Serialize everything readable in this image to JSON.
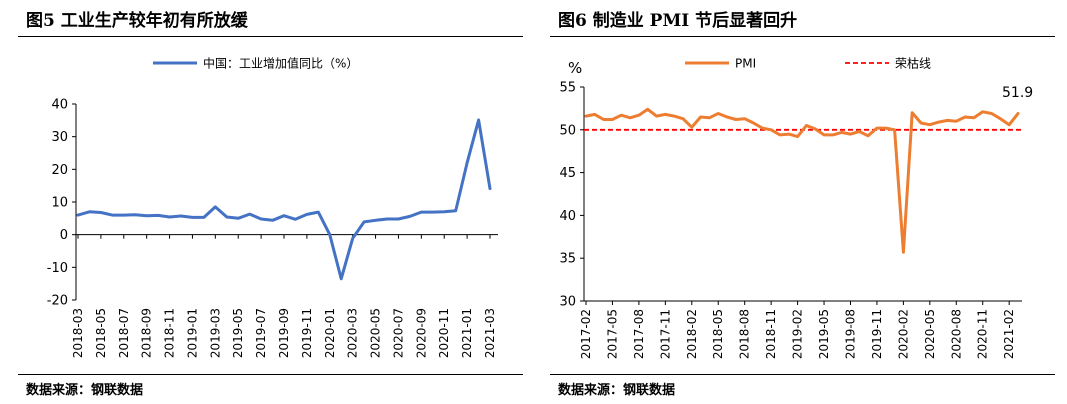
{
  "panels": [
    {
      "title": "图5  工业生产较年初有所放缓",
      "source": "数据来源：钢联数据"
    },
    {
      "title": "图6  制造业 PMI 节后显著回升",
      "source": "数据来源：钢联数据"
    }
  ],
  "chart_data": [
    {
      "type": "line",
      "title": "图5  工业生产较年初有所放缓",
      "ylabel": "",
      "xlabel": "",
      "ylim": [
        -20,
        40
      ],
      "yticks": [
        -20,
        -10,
        0,
        10,
        20,
        30,
        40
      ],
      "x_tick_labels": [
        "2018-03",
        "2018-05",
        "2018-07",
        "2018-09",
        "2018-11",
        "2019-01",
        "2019-03",
        "2019-05",
        "2019-07",
        "2019-09",
        "2019-11",
        "2020-01",
        "2020-03",
        "2020-05",
        "2020-07",
        "2020-09",
        "2020-11",
        "2021-01",
        "2021-03"
      ],
      "legend": {
        "placement": "top-center",
        "entries": [
          "中国：工业增加值同比（%）"
        ]
      },
      "series": [
        {
          "name": "中国：工业增加值同比（%）",
          "color": "#4472C4",
          "x": [
            "2018-03",
            "2018-04",
            "2018-05",
            "2018-06",
            "2018-07",
            "2018-08",
            "2018-09",
            "2018-10",
            "2018-11",
            "2018-12",
            "2019-01",
            "2019-02",
            "2019-03",
            "2019-04",
            "2019-05",
            "2019-06",
            "2019-07",
            "2019-08",
            "2019-09",
            "2019-10",
            "2019-11",
            "2019-12",
            "2020-01",
            "2020-02",
            "2020-03",
            "2020-04",
            "2020-05",
            "2020-06",
            "2020-07",
            "2020-08",
            "2020-09",
            "2020-10",
            "2020-11",
            "2020-12",
            "2021-01",
            "2021-02",
            "2021-03"
          ],
          "values": [
            6.0,
            7.0,
            6.8,
            6.0,
            6.0,
            6.1,
            5.8,
            5.9,
            5.4,
            5.7,
            5.3,
            5.3,
            8.5,
            5.4,
            5.0,
            6.3,
            4.8,
            4.4,
            5.8,
            4.7,
            6.2,
            6.9,
            0,
            -13.5,
            -1.1,
            3.9,
            4.4,
            4.8,
            4.8,
            5.6,
            6.9,
            6.9,
            7.0,
            7.3,
            22,
            35.1,
            14.1
          ]
        }
      ]
    },
    {
      "type": "line",
      "title": "图6  制造业 PMI 节后显著回升",
      "ylabel": "%",
      "xlabel": "",
      "ylim": [
        30,
        55
      ],
      "yticks": [
        30,
        35,
        40,
        45,
        50,
        55
      ],
      "x_tick_labels": [
        "2017-02",
        "2017-05",
        "2017-08",
        "2017-11",
        "2018-02",
        "2018-05",
        "2018-08",
        "2018-11",
        "2019-02",
        "2019-05",
        "2019-08",
        "2019-11",
        "2020-02",
        "2020-05",
        "2020-08",
        "2020-11",
        "2021-02"
      ],
      "legend": {
        "placement": "top-center",
        "entries": [
          "PMI",
          "荣枯线"
        ]
      },
      "annotations": [
        {
          "text": "51.9"
        }
      ],
      "series": [
        {
          "name": "PMI",
          "color": "#ED7D31",
          "x": [
            "2017-02",
            "2017-03",
            "2017-04",
            "2017-05",
            "2017-06",
            "2017-07",
            "2017-08",
            "2017-09",
            "2017-10",
            "2017-11",
            "2017-12",
            "2018-01",
            "2018-02",
            "2018-03",
            "2018-04",
            "2018-05",
            "2018-06",
            "2018-07",
            "2018-08",
            "2018-09",
            "2018-10",
            "2018-11",
            "2018-12",
            "2019-01",
            "2019-02",
            "2019-03",
            "2019-04",
            "2019-05",
            "2019-06",
            "2019-07",
            "2019-08",
            "2019-09",
            "2019-10",
            "2019-11",
            "2019-12",
            "2020-01",
            "2020-02",
            "2020-03",
            "2020-04",
            "2020-05",
            "2020-06",
            "2020-07",
            "2020-08",
            "2020-09",
            "2020-10",
            "2020-11",
            "2020-12",
            "2021-01",
            "2021-02",
            "2021-03"
          ],
          "values": [
            51.6,
            51.8,
            51.2,
            51.2,
            51.7,
            51.4,
            51.7,
            52.4,
            51.6,
            51.8,
            51.6,
            51.3,
            50.3,
            51.5,
            51.4,
            51.9,
            51.5,
            51.2,
            51.3,
            50.8,
            50.2,
            50.0,
            49.4,
            49.5,
            49.2,
            50.5,
            50.1,
            49.4,
            49.4,
            49.7,
            49.5,
            49.8,
            49.3,
            50.2,
            50.2,
            50.0,
            35.7,
            52.0,
            50.8,
            50.6,
            50.9,
            51.1,
            51.0,
            51.5,
            51.4,
            52.1,
            51.9,
            51.3,
            50.6,
            51.9
          ]
        },
        {
          "name": "荣枯线",
          "color": "#FF0000",
          "values": [
            50
          ]
        }
      ]
    }
  ]
}
